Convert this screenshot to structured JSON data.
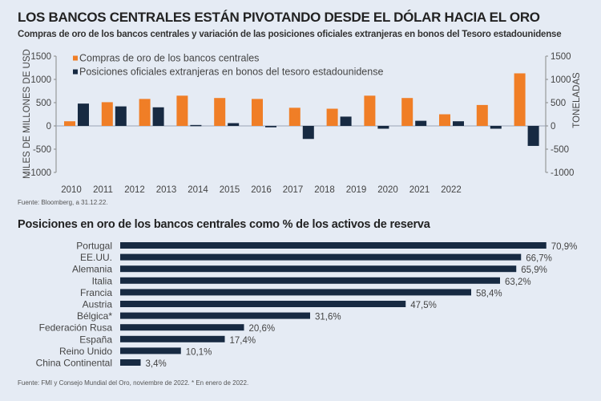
{
  "header": {
    "title": "LOS BANCOS CENTRALES ESTÁN PIVOTANDO DESDE EL DÓLAR HACIA EL ORO",
    "subtitle": "Compras de oro de los bancos centrales y variación de las posiciones oficiales extranjeras en bonos del Tesoro estadounidense"
  },
  "colors": {
    "orange": "#f07e26",
    "navy": "#172a42",
    "background": "#e5ebf4"
  },
  "chart_data": [
    {
      "type": "bar",
      "categories": [
        "2010",
        "2011",
        "2012",
        "2013",
        "2014",
        "2015",
        "2016",
        "2017",
        "2018",
        "2019",
        "2020",
        "2021",
        "2022"
      ],
      "ylabel": "MILES DE MILLONES DE USD",
      "ylabel_right": "TONELADAS",
      "ylim": [
        -1000,
        1500
      ],
      "yticks": [
        1500,
        1000,
        500,
        0,
        -500,
        -1000
      ],
      "legend": "top-left",
      "grid": false,
      "series": [
        {
          "name": "Compras de oro de los bancos centrales",
          "color": "#f07e26",
          "axis": "right",
          "values": [
            100,
            510,
            580,
            650,
            600,
            580,
            390,
            370,
            650,
            600,
            250,
            450,
            1130
          ]
        },
        {
          "name": "Posiciones oficiales extranjeras en bonos del tesoro estadounidense",
          "color": "#172a42",
          "axis": "left",
          "values": [
            480,
            420,
            400,
            20,
            60,
            -30,
            -280,
            200,
            -60,
            110,
            100,
            -60,
            -430
          ]
        }
      ],
      "source": "Fuente: Bloomberg, a 31.12.22."
    },
    {
      "type": "bar",
      "orientation": "horizontal",
      "title": "Posiciones en oro de los bancos centrales como % de los activos de reserva",
      "categories": [
        "Portugal",
        "EE.UU.",
        "Alemania",
        "Italia",
        "Francia",
        "Austria",
        "Bélgica*",
        "Federación Rusa",
        "España",
        "Reino Unido",
        "China Continental"
      ],
      "values": [
        70.9,
        66.7,
        65.9,
        63.2,
        58.4,
        47.5,
        31.6,
        20.6,
        17.4,
        10.1,
        3.4
      ],
      "labels": [
        "70,9%",
        "66,7%",
        "65,9%",
        "63,2%",
        "58,4%",
        "47,5%",
        "31,6%",
        "20,6%",
        "17,4%",
        "10,1%",
        "3,4%"
      ],
      "color": "#172a42",
      "source": "Fuente: FMI y Consejo Mundial del Oro, noviembre de 2022. * En enero de 2022."
    }
  ]
}
